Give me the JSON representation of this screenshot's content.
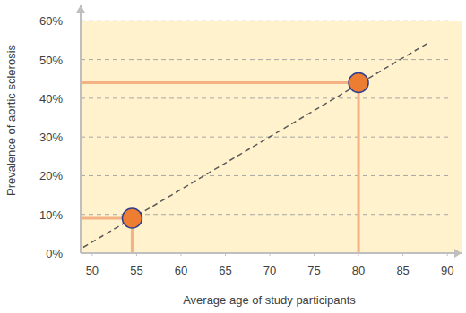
{
  "chart_data": {
    "type": "scatter",
    "x_label": "Average age of study participants",
    "y_label": "Prevalence of aortic sclerosis",
    "xlim": [
      48.7,
      91.6
    ],
    "ylim": [
      0,
      64
    ],
    "xticks": [
      50,
      55,
      60,
      65,
      70,
      75,
      80,
      85,
      90
    ],
    "yticks": [
      {
        "value": 0,
        "label": "0%"
      },
      {
        "value": 10,
        "label": "10%"
      },
      {
        "value": 20,
        "label": "20%"
      },
      {
        "value": 30,
        "label": "30%"
      },
      {
        "value": 40,
        "label": "40%"
      },
      {
        "value": 50,
        "label": "50%"
      },
      {
        "value": 60,
        "label": "60%"
      }
    ],
    "grid": true,
    "series": [
      {
        "type": "scatter",
        "color": "#ed7d31",
        "marker": "circle",
        "x": [
          54.5,
          80
        ],
        "values": [
          9,
          44
        ]
      },
      {
        "type": "line",
        "color": "#595959",
        "line_style": "dashed",
        "x": [
          49,
          88
        ],
        "values": [
          1.5,
          54.5
        ]
      }
    ]
  }
}
